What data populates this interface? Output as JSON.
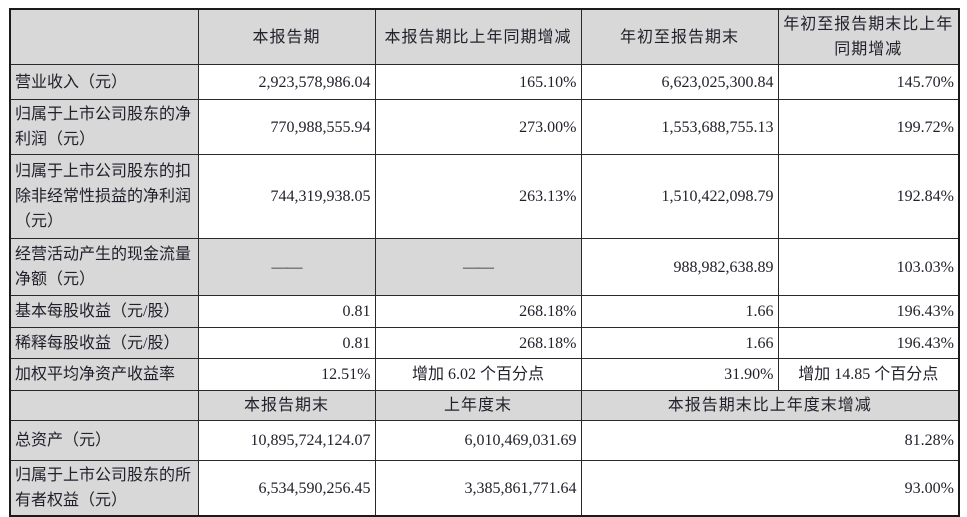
{
  "colors": {
    "header_bg": "#d8d8d8",
    "border": "#2a2a2a",
    "label_text": "#38383d",
    "number_text": "#21212b",
    "page_bg": "#ffffff"
  },
  "table": {
    "header1": {
      "corner": "",
      "col1": "本报告期",
      "col2": "本报告期比上年同期增减",
      "col3": "年初至报告期末",
      "col4": "年初至报告期末比上年同期增减"
    },
    "rows1": [
      {
        "label": "营业收入（元）",
        "v1": "2,923,578,986.04",
        "v2": "165.10%",
        "v3": "6,623,025,300.84",
        "v4": "145.70%"
      },
      {
        "label": "归属于上市公司股东的净利润（元）",
        "v1": "770,988,555.94",
        "v2": "273.00%",
        "v3": "1,553,688,755.13",
        "v4": "199.72%"
      },
      {
        "label": "归属于上市公司股东的扣除非经常性损益的净利润（元）",
        "v1": "744,319,938.05",
        "v2": "263.13%",
        "v3": "1,510,422,098.79",
        "v4": "192.84%"
      },
      {
        "label": "经营活动产生的现金流量净额（元）",
        "v1": "——",
        "v2": "——",
        "v3": "988,982,638.89",
        "v4": "103.03%"
      },
      {
        "label": "基本每股收益（元/股）",
        "v1": "0.81",
        "v2": "268.18%",
        "v3": "1.66",
        "v4": "196.43%"
      },
      {
        "label": "稀释每股收益（元/股）",
        "v1": "0.81",
        "v2": "268.18%",
        "v3": "1.66",
        "v4": "196.43%"
      },
      {
        "label": "加权平均净资产收益率",
        "v1": "12.51%",
        "v2": "增加 6.02 个百分点",
        "v3": "31.90%",
        "v4": "增加 14.85 个百分点"
      }
    ],
    "header2": {
      "corner": "",
      "col1": "本报告期末",
      "col2": "上年度末",
      "col3_span": "本报告期末比上年度末增减"
    },
    "rows2": [
      {
        "label": "总资产（元）",
        "v1": "10,895,724,124.07",
        "v2": "6,010,469,031.69",
        "v3": "81.28%"
      },
      {
        "label": "归属于上市公司股东的所有者权益（元）",
        "v1": "6,534,590,256.45",
        "v2": "3,385,861,771.64",
        "v3": "93.00%"
      }
    ]
  }
}
